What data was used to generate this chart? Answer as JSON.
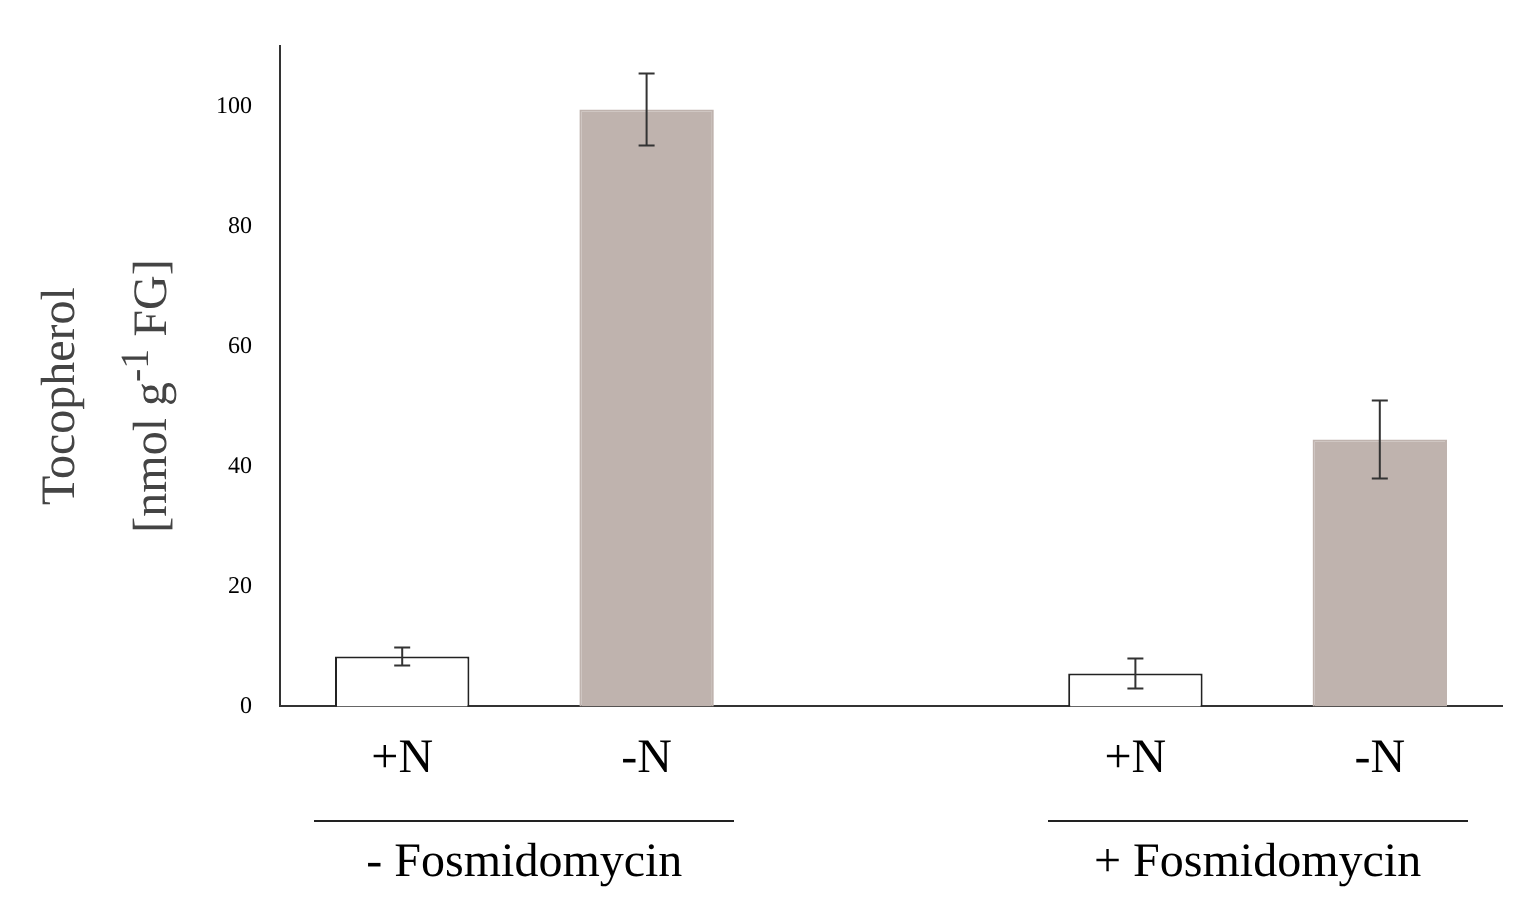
{
  "chart_data": {
    "type": "bar",
    "ylabel": "Tocopherol [nmol g$^{-1}$ FG]",
    "categories": [
      "+N",
      "-N",
      null,
      "+N",
      "-N"
    ],
    "values": [
      8.3,
      99.5,
      null,
      5.5,
      44.5
    ],
    "errors": [
      1.5,
      6,
      null,
      2.5,
      6.5
    ],
    "colors": [
      "#ffffff",
      "#bfb3ae",
      "#ffffff",
      "#ffffff",
      "#bfb3ae"
    ],
    "ylim": [
      0,
      110
    ],
    "yticks": [
      0,
      20,
      40,
      60,
      80,
      100
    ],
    "grid": false,
    "annotations": [
      "- Fosmidomycin",
      "+ Fosmidomycin"
    ]
  }
}
